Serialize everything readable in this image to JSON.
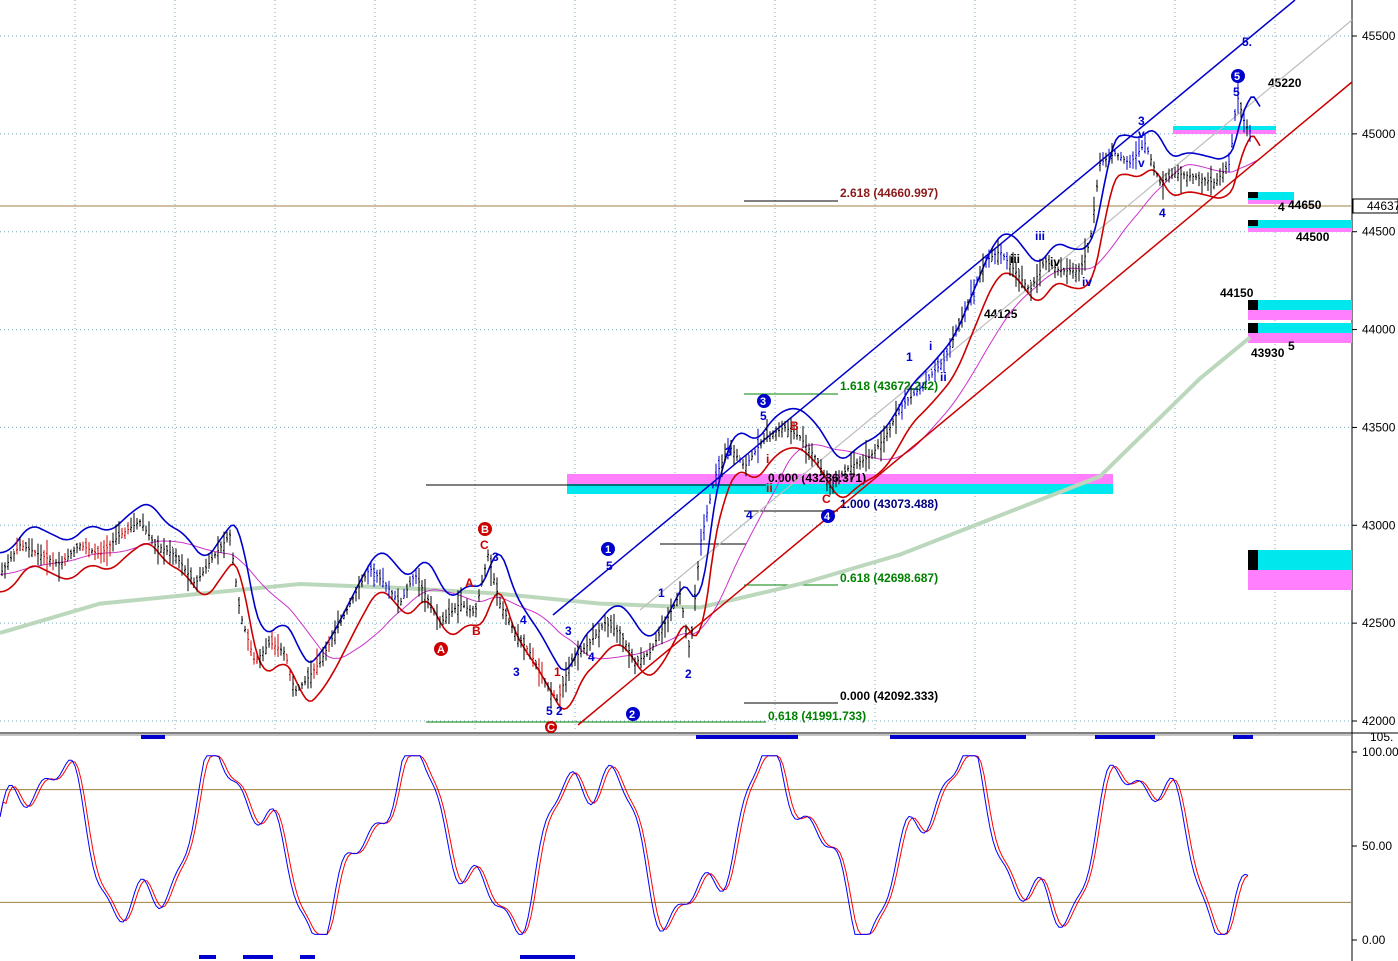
{
  "chart_data": [
    {
      "type": "line",
      "title": "",
      "xlabel": "",
      "ylabel": "",
      "ylim": [
        41950,
        45700
      ],
      "y_ticks": [
        "45500",
        "45000",
        "44500",
        "44000",
        "43500",
        "43000",
        "42500",
        "42000"
      ],
      "current_price_label": "44637.",
      "grid": true,
      "series": [
        {
          "role": "price",
          "color": "#000000"
        },
        {
          "role": "upper-band",
          "color": "#0000cc"
        },
        {
          "role": "lower-band",
          "color": "#cc0000"
        },
        {
          "role": "moving-average-short",
          "color": "#cc33cc"
        },
        {
          "role": "moving-average-long",
          "color": "#bcd8bc"
        }
      ],
      "fib_levels": [
        {
          "label": "2.618 (44660.997)",
          "value": 44661,
          "color": "#8b1a1a"
        },
        {
          "label": "1.618 (43672.242)",
          "value": 43672,
          "color": "#008000"
        },
        {
          "label": "0.000 (43236.371)",
          "value": 43236,
          "color": "#000000"
        },
        {
          "label": "1.000 (43073.488)",
          "value": 43073,
          "color": "#000080"
        },
        {
          "label": "0.618 (42698.687)",
          "value": 42699,
          "color": "#008000"
        },
        {
          "label": "0.000 (42092.333)",
          "value": 42092,
          "color": "#000000"
        },
        {
          "label": "0.618 (41991.733)",
          "value": 41992,
          "color": "#008000"
        }
      ],
      "price_targets": [
        {
          "label": "45220",
          "value": 45220
        },
        {
          "label": "44650",
          "value": 44650
        },
        {
          "label": "44500",
          "value": 44500
        },
        {
          "label": "44150",
          "value": 44150
        },
        {
          "label": "43930",
          "value": 43930
        },
        {
          "label": "44125",
          "value": 44125
        }
      ],
      "wave_labels_circled": [
        "1",
        "2",
        "3",
        "4",
        "5",
        "A",
        "B",
        "C"
      ],
      "wave_labels": [
        "1",
        "2",
        "3",
        "4",
        "5",
        "i",
        "ii",
        "iii",
        "iv",
        "v",
        "A",
        "B",
        "C",
        "5",
        "2",
        "3",
        "4",
        "1",
        "5",
        "4",
        "3",
        "3",
        "4",
        "5",
        "B",
        "C",
        "4",
        "5",
        "3",
        "v",
        "1",
        "i",
        "ii",
        "iii",
        "iv",
        "5."
      ]
    },
    {
      "type": "line",
      "title": "",
      "ylim": [
        0,
        100
      ],
      "y_ticks": [
        "100.00",
        "50.00",
        "0.00"
      ],
      "top_label": "105.",
      "series": [
        {
          "role": "stochastic-k",
          "color": "#0000ff"
        },
        {
          "role": "stochastic-d",
          "color": "#ff0000"
        }
      ],
      "reference_lines": [
        80,
        20
      ]
    }
  ]
}
